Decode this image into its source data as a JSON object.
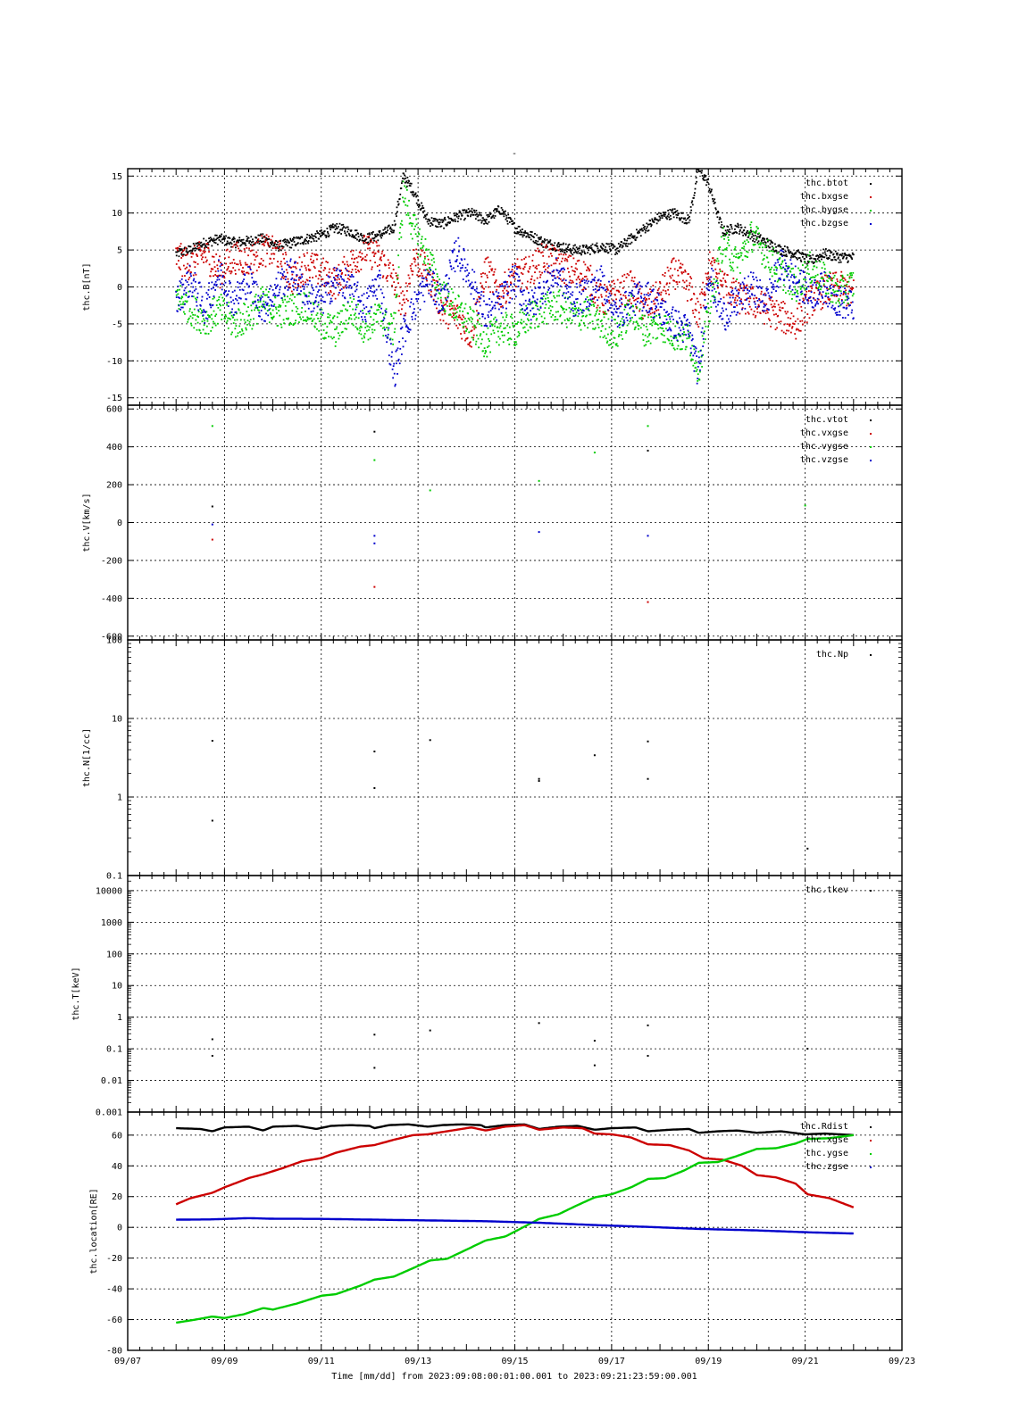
{
  "figure": {
    "title": "-",
    "xlabel": "Time [mm/dd]  from 2023:09:08:00:01:00.001  to  2023:09:21:23:59:00.001",
    "x_range": [
      "09/07",
      "09/23"
    ],
    "x_ticks": [
      "09/07",
      "09/09",
      "09/11",
      "09/13",
      "09/15",
      "09/17",
      "09/19",
      "09/21",
      "09/23"
    ],
    "grid": true
  },
  "chart_data": [
    {
      "type": "scatter",
      "ylabel": "thc.B[nT]",
      "ylim": [
        -16,
        16
      ],
      "y_ticks": [
        "15",
        "10",
        "5",
        "0",
        "-5",
        "-10",
        "-15"
      ],
      "y_tick_values": [
        15,
        10,
        5,
        0,
        -5,
        -10,
        -15
      ],
      "legend_position": "top-right",
      "series": [
        {
          "name": "thc.btot",
          "color": "#000000",
          "x": [
            8.0,
            8.3,
            8.6,
            8.9,
            9.2,
            9.5,
            9.8,
            10.1,
            10.4,
            10.7,
            11.0,
            11.3,
            11.6,
            11.9,
            12.2,
            12.5,
            12.7,
            12.9,
            13.2,
            13.5,
            13.8,
            14.1,
            14.4,
            14.7,
            15.0,
            15.3,
            15.6,
            15.9,
            16.2,
            16.5,
            16.8,
            17.1,
            17.4,
            17.7,
            18.0,
            18.3,
            18.6,
            18.8,
            19.0,
            19.3,
            19.6,
            19.9,
            20.2,
            20.5,
            20.8,
            21.1,
            21.4,
            21.7,
            22.0
          ],
          "y": [
            4.5,
            5.0,
            6.0,
            6.5,
            6.0,
            6.2,
            6.5,
            5.5,
            6.0,
            6.5,
            7.0,
            8.0,
            7.5,
            6.5,
            7.0,
            8.0,
            15.0,
            13.0,
            9.0,
            8.5,
            9.5,
            10.0,
            9.0,
            10.5,
            8.0,
            7.0,
            6.0,
            5.5,
            5.0,
            5.0,
            5.5,
            5.0,
            6.5,
            8.0,
            9.5,
            10.0,
            9.0,
            16.0,
            14.0,
            7.5,
            8.0,
            7.0,
            6.0,
            5.0,
            4.5,
            3.5,
            4.5,
            4.0,
            4.0
          ]
        },
        {
          "name": "thc.bxgse",
          "color": "#cc0000",
          "x": [
            8.0,
            8.3,
            8.6,
            8.9,
            9.2,
            9.5,
            9.8,
            10.1,
            10.4,
            10.7,
            11.0,
            11.3,
            11.6,
            11.9,
            12.2,
            12.5,
            12.7,
            12.9,
            13.2,
            13.5,
            13.8,
            14.1,
            14.4,
            14.7,
            15.0,
            15.3,
            15.6,
            15.9,
            16.2,
            16.5,
            16.8,
            17.1,
            17.4,
            17.7,
            18.0,
            18.3,
            18.6,
            18.8,
            19.0,
            19.3,
            19.6,
            19.9,
            20.2,
            20.5,
            20.8,
            21.1,
            21.4,
            21.7,
            22.0
          ],
          "y": [
            4.0,
            3.0,
            4.5,
            2.0,
            4.0,
            3.5,
            5.0,
            4.5,
            1.0,
            3.0,
            2.0,
            0.5,
            3.0,
            5.0,
            4.0,
            1.0,
            -3.0,
            4.0,
            2.0,
            -3.0,
            -4.0,
            -6.5,
            2.5,
            -1.0,
            1.5,
            2.0,
            4.0,
            3.0,
            2.0,
            1.5,
            -2.0,
            -1.0,
            0.0,
            -3.0,
            -1.0,
            2.0,
            0.0,
            -4.0,
            3.0,
            0.5,
            -1.5,
            -2.0,
            -3.0,
            -4.0,
            -5.0,
            -2.0,
            -0.5,
            0.0,
            -1.0
          ]
        },
        {
          "name": "thc.bygse",
          "color": "#00cc00",
          "x": [
            8.0,
            8.3,
            8.6,
            8.9,
            9.2,
            9.5,
            9.8,
            10.1,
            10.4,
            10.7,
            11.0,
            11.3,
            11.6,
            11.9,
            12.2,
            12.5,
            12.7,
            12.9,
            13.2,
            13.5,
            13.8,
            14.1,
            14.4,
            14.7,
            15.0,
            15.3,
            15.6,
            15.9,
            16.2,
            16.5,
            16.8,
            17.1,
            17.4,
            17.7,
            18.0,
            18.3,
            18.6,
            18.8,
            19.0,
            19.3,
            19.6,
            19.9,
            20.2,
            20.5,
            20.8,
            21.1,
            21.4,
            21.7,
            22.0
          ],
          "y": [
            -1.0,
            -3.0,
            -4.5,
            -3.0,
            -5.0,
            -4.0,
            -2.0,
            -3.5,
            -3.0,
            -2.5,
            -5.0,
            -6.0,
            -3.0,
            -5.5,
            -4.0,
            -6.0,
            13.0,
            8.0,
            4.0,
            -1.0,
            -3.0,
            -5.0,
            -7.5,
            -5.5,
            -6.0,
            -4.0,
            -3.0,
            -2.5,
            -4.0,
            -3.5,
            -5.0,
            -6.5,
            -3.0,
            -6.0,
            -5.0,
            -6.5,
            -7.0,
            -11.0,
            -4.0,
            6.0,
            3.0,
            7.0,
            4.5,
            2.0,
            0.0,
            2.5,
            1.0,
            -1.0,
            0.5
          ]
        },
        {
          "name": "thc.bzgse",
          "color": "#0000cc",
          "x": [
            8.0,
            8.3,
            8.6,
            8.9,
            9.2,
            9.5,
            9.8,
            10.1,
            10.4,
            10.7,
            11.0,
            11.3,
            11.6,
            11.9,
            12.2,
            12.5,
            12.7,
            12.9,
            13.2,
            13.5,
            13.8,
            14.1,
            14.4,
            14.7,
            15.0,
            15.3,
            15.6,
            15.9,
            16.2,
            16.5,
            16.8,
            17.1,
            17.4,
            17.7,
            18.0,
            18.3,
            18.6,
            18.8,
            19.0,
            19.3,
            19.6,
            19.9,
            20.2,
            20.5,
            20.8,
            21.1,
            21.4,
            21.7,
            22.0
          ],
          "y": [
            -2.0,
            1.0,
            -3.0,
            2.0,
            -2.0,
            1.0,
            -3.0,
            0.0,
            2.0,
            -1.0,
            -2.0,
            1.0,
            0.0,
            -3.0,
            1.0,
            -12.0,
            -6.0,
            -3.0,
            1.0,
            -2.0,
            5.0,
            1.0,
            -4.0,
            -2.0,
            1.0,
            -3.0,
            0.0,
            2.0,
            -2.0,
            -1.0,
            1.0,
            -4.0,
            -2.0,
            -1.0,
            -3.0,
            -5.0,
            -6.0,
            -12.0,
            2.0,
            -4.0,
            -2.0,
            0.0,
            -2.0,
            3.0,
            1.0,
            -1.0,
            0.0,
            -2.0,
            -2.5
          ]
        }
      ]
    },
    {
      "type": "scatter",
      "ylabel": "thc.V[km/s]",
      "ylim": [
        -620,
        620
      ],
      "y_ticks": [
        "600",
        "400",
        "200",
        "0",
        "-200",
        "-400",
        "-600"
      ],
      "y_tick_values": [
        600,
        400,
        200,
        0,
        -200,
        -400,
        -600
      ],
      "legend_position": "top-right",
      "series": [
        {
          "name": "thc.vtot",
          "color": "#000000",
          "x": [
            8.75,
            12.1,
            17.75
          ],
          "y": [
            85,
            480,
            380
          ]
        },
        {
          "name": "thc.vxgse",
          "color": "#cc0000",
          "x": [
            8.75,
            12.1,
            17.75
          ],
          "y": [
            -90,
            -340,
            -420
          ]
        },
        {
          "name": "thc.vygse",
          "color": "#00cc00",
          "x": [
            8.75,
            12.1,
            13.25,
            15.5,
            16.65,
            17.75,
            21.0
          ],
          "y": [
            510,
            330,
            170,
            220,
            370,
            510,
            90
          ]
        },
        {
          "name": "thc.vzgse",
          "color": "#0000cc",
          "x": [
            8.75,
            12.1,
            12.1,
            15.5,
            17.75
          ],
          "y": [
            -10,
            -70,
            -110,
            -50,
            -70
          ]
        }
      ]
    },
    {
      "type": "scatter",
      "ylabel": "thc.N[1/cc]",
      "y_scale": "log",
      "ylim": [
        0.1,
        100
      ],
      "y_ticks": [
        "100",
        "10",
        "1",
        "0.1"
      ],
      "y_tick_values": [
        100,
        10,
        1,
        0.1
      ],
      "legend_position": "top-right",
      "series": [
        {
          "name": "thc.Np",
          "color": "#000000",
          "x": [
            8.75,
            8.75,
            12.1,
            12.1,
            13.25,
            15.5,
            15.5,
            16.65,
            17.75,
            17.75,
            21.05
          ],
          "y": [
            5.2,
            0.5,
            3.8,
            1.3,
            5.3,
            1.7,
            1.6,
            3.4,
            5.1,
            1.7,
            0.22
          ]
        }
      ]
    },
    {
      "type": "scatter",
      "ylabel": "thc.T[keV]",
      "y_scale": "log",
      "ylim": [
        0.001,
        30000
      ],
      "y_ticks": [
        "10000",
        "1000",
        "100",
        "10",
        "1",
        "0.1",
        "0.01",
        "0.001"
      ],
      "y_tick_values": [
        10000,
        1000,
        100,
        10,
        1,
        0.1,
        0.01,
        0.001
      ],
      "legend_position": "top-right",
      "series": [
        {
          "name": "thc.tkev",
          "color": "#000000",
          "x": [
            8.75,
            8.75,
            12.1,
            12.1,
            13.25,
            15.5,
            16.65,
            16.65,
            17.75,
            17.75,
            21.05
          ],
          "y": [
            0.2,
            0.06,
            0.28,
            0.025,
            0.38,
            0.65,
            0.18,
            0.03,
            0.55,
            0.06,
            0.1
          ]
        }
      ]
    },
    {
      "type": "line",
      "ylabel": "thc.location[RE]",
      "ylim": [
        -80,
        75
      ],
      "y_ticks": [
        "60",
        "40",
        "20",
        "0",
        "-20",
        "-40",
        "-60",
        "-80"
      ],
      "y_tick_values": [
        60,
        40,
        20,
        0,
        -20,
        -40,
        -60,
        -80
      ],
      "legend_position": "top-right",
      "series": [
        {
          "name": "thc.Rdist",
          "color": "#000000",
          "x": [
            8.0,
            8.5,
            8.75,
            9.0,
            9.5,
            9.8,
            10.0,
            10.5,
            10.9,
            11.2,
            11.6,
            12.0,
            12.1,
            12.4,
            12.8,
            13.2,
            13.5,
            13.9,
            14.3,
            14.4,
            14.8,
            15.2,
            15.5,
            15.9,
            16.3,
            16.65,
            17.0,
            17.5,
            17.75,
            18.2,
            18.6,
            18.8,
            19.2,
            19.6,
            20.0,
            20.5,
            21.0,
            21.4,
            22.0
          ],
          "y": [
            64.5,
            64.0,
            62.5,
            65.0,
            65.5,
            63.0,
            65.5,
            66.0,
            64.0,
            66.0,
            66.5,
            66.0,
            64.5,
            66.5,
            67.0,
            65.5,
            66.5,
            67.0,
            66.5,
            65.0,
            66.5,
            67.0,
            64.0,
            65.5,
            66.0,
            63.5,
            64.5,
            65.0,
            62.5,
            63.5,
            64.0,
            61.5,
            62.5,
            63.0,
            61.5,
            62.5,
            60.5,
            61.0,
            60.0
          ]
        },
        {
          "name": "thc.xgse",
          "color": "#cc0000",
          "x": [
            8.0,
            8.3,
            8.75,
            9.0,
            9.5,
            9.8,
            10.2,
            10.6,
            11.0,
            11.3,
            11.8,
            12.1,
            12.5,
            12.9,
            13.2,
            13.7,
            14.1,
            14.4,
            14.8,
            15.2,
            15.5,
            16.0,
            16.4,
            16.65,
            17.0,
            17.4,
            17.75,
            18.2,
            18.6,
            18.9,
            19.3,
            19.7,
            20.0,
            20.4,
            20.8,
            21.05,
            21.5,
            22.0
          ],
          "y": [
            15.0,
            19.0,
            22.5,
            26.0,
            32.0,
            34.5,
            38.5,
            43.0,
            45.0,
            48.5,
            52.5,
            53.5,
            57.0,
            60.0,
            60.5,
            63.0,
            65.0,
            63.0,
            65.5,
            66.5,
            63.5,
            65.0,
            64.5,
            61.0,
            60.5,
            58.5,
            54.0,
            53.5,
            50.0,
            45.0,
            44.0,
            40.0,
            34.0,
            32.5,
            28.5,
            21.5,
            19.0,
            13.0
          ]
        },
        {
          "name": "thc.ygse",
          "color": "#00cc00",
          "x": [
            8.0,
            8.4,
            8.75,
            9.0,
            9.4,
            9.8,
            10.0,
            10.5,
            11.0,
            11.3,
            11.8,
            12.1,
            12.5,
            12.9,
            13.25,
            13.6,
            14.0,
            14.4,
            14.8,
            15.2,
            15.5,
            15.9,
            16.3,
            16.65,
            17.0,
            17.4,
            17.75,
            18.1,
            18.5,
            18.8,
            19.2,
            19.6,
            20.0,
            20.4,
            20.8,
            21.05,
            21.5,
            22.0
          ],
          "y": [
            -62.0,
            -60.0,
            -58.0,
            -59.0,
            -56.5,
            -52.5,
            -53.5,
            -49.5,
            -44.5,
            -43.5,
            -38.0,
            -34.0,
            -32.0,
            -26.5,
            -21.5,
            -20.5,
            -14.5,
            -8.5,
            -6.0,
            0.5,
            5.5,
            8.5,
            14.5,
            19.5,
            21.5,
            26.0,
            31.5,
            32.0,
            37.0,
            42.0,
            42.5,
            46.5,
            51.0,
            51.5,
            54.5,
            57.5,
            58.0,
            60.0
          ]
        },
        {
          "name": "thc.zgse",
          "color": "#0000cc",
          "x": [
            8.0,
            8.75,
            9.5,
            10.0,
            11.0,
            12.1,
            13.25,
            14.4,
            15.5,
            16.65,
            17.75,
            18.8,
            20.0,
            21.05,
            22.0
          ],
          "y": [
            5.0,
            5.2,
            6.0,
            5.6,
            5.5,
            5.0,
            4.5,
            4.0,
            3.0,
            1.5,
            0.3,
            -1.0,
            -2.0,
            -3.2,
            -4.0
          ]
        }
      ]
    }
  ]
}
